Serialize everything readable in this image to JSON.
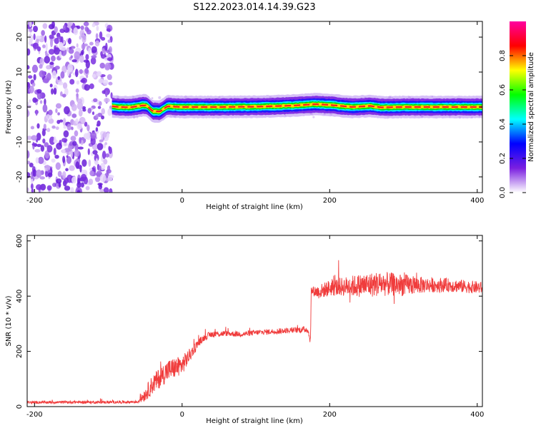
{
  "title": "S122.2023.014.14.39.G23",
  "chart_data": [
    {
      "type": "heatmap",
      "xlabel": "Height of straight line (km)",
      "ylabel": "Frequency (Hz)",
      "xlim": [
        -210,
        407
      ],
      "ylim": [
        -24.5,
        24.5
      ],
      "xticks": [
        -200,
        0,
        200,
        400
      ],
      "yticks": [
        -20,
        -10,
        0,
        10,
        20
      ],
      "grid": false,
      "colorbar": {
        "label": "Normalized spectral amplitude",
        "range": [
          0,
          1
        ],
        "ticks": [
          "0.0",
          "0.2",
          "0.4",
          "0.6",
          "0.8"
        ],
        "colors": [
          "#ffffff",
          "#7a1fe0",
          "#0000ff",
          "#00ffff",
          "#00ff00",
          "#ffff00",
          "#ff0000",
          "#ff00a0"
        ]
      },
      "noise_region_x": [
        -210,
        -95
      ],
      "ridge": {
        "x": [
          -95,
          -85,
          -70,
          -55,
          -48,
          -40,
          -30,
          -20,
          0,
          50,
          100,
          150,
          180,
          200,
          230,
          255,
          270,
          300,
          350,
          407
        ],
        "freq": [
          0.2,
          0.0,
          -0.1,
          0.4,
          0.5,
          -1.2,
          -1.3,
          0.2,
          0.0,
          0.0,
          0.1,
          0.4,
          0.8,
          0.6,
          0.0,
          0.3,
          -0.1,
          0.0,
          0.0,
          0.0
        ]
      }
    },
    {
      "type": "line",
      "xlabel": "Height of straight line (km)",
      "ylabel": "SNR (10 * v/v)",
      "xlim": [
        -210,
        407
      ],
      "ylim": [
        0,
        620
      ],
      "xticks": [
        -200,
        0,
        200,
        400
      ],
      "yticks": [
        0,
        200,
        400,
        600
      ],
      "grid": false,
      "series": [
        {
          "color": "#f03c3c",
          "x": [
            -210,
            -150,
            -100,
            -60,
            -50,
            -40,
            -20,
            0,
            10,
            20,
            30,
            40,
            60,
            80,
            100,
            140,
            170,
            174,
            175,
            185,
            200,
            220,
            250,
            270,
            300,
            330,
            360,
            407
          ],
          "y": [
            15,
            16,
            16,
            17,
            45,
            80,
            130,
            150,
            185,
            225,
            250,
            262,
            265,
            262,
            268,
            275,
            280,
            240,
            420,
            415,
            430,
            435,
            440,
            445,
            440,
            440,
            440,
            430
          ],
          "noise": [
            5,
            5,
            5,
            5,
            25,
            35,
            40,
            35,
            25,
            15,
            12,
            12,
            10,
            10,
            10,
            10,
            12,
            15,
            15,
            25,
            30,
            35,
            45,
            45,
            40,
            28,
            25,
            22
          ]
        }
      ]
    }
  ]
}
